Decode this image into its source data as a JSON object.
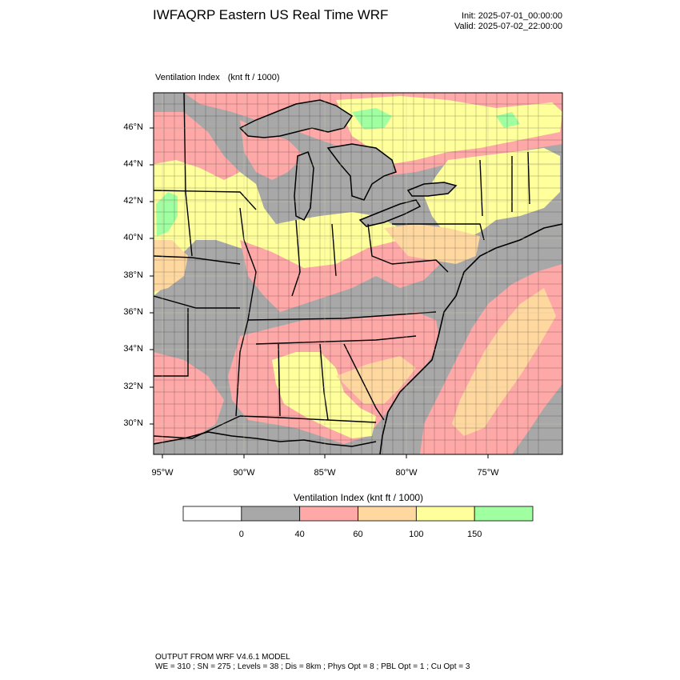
{
  "header": {
    "title": "IWFAQRP Eastern US Real Time WRF",
    "init": "Init: 2025-07-01_00:00:00",
    "valid": "Valid: 2025-07-02_22:00:00"
  },
  "plot": {
    "field_name": "Ventilation Index",
    "units": "(knt ft / 1000)"
  },
  "map": {
    "lat_labels": [
      "46°N",
      "44°N",
      "42°N",
      "40°N",
      "38°N",
      "36°N",
      "34°N",
      "32°N",
      "30°N"
    ],
    "lon_labels": [
      "95°W",
      "90°W",
      "85°W",
      "80°W",
      "75°W"
    ],
    "colors": {
      "land_low": "#a8a8a8",
      "water": "#a8a8a8",
      "cat_40_60": "#ffa8a8",
      "cat_60_100": "#ffd8a0",
      "cat_100_150": "#ffff9c",
      "cat_150_plus": "#a0ffa0"
    }
  },
  "colorbar": {
    "title": "Ventilation Index  (knt ft / 1000)",
    "labels": [
      "0",
      "40",
      "60",
      "100",
      "150"
    ],
    "bins": [
      {
        "color": "#ffffff"
      },
      {
        "color": "#a8a8a8"
      },
      {
        "color": "#ffa8a8"
      },
      {
        "color": "#ffd8a0"
      },
      {
        "color": "#ffff9c"
      },
      {
        "color": "#a0ffa0"
      }
    ]
  },
  "footer": {
    "line1": "OUTPUT FROM WRF V4.6.1 MODEL",
    "line2": "WE = 310 ; SN = 275 ; Levels = 38 ; Dis = 8km ; Phys Opt = 8 ; PBL Opt = 1 ; Cu Opt = 3"
  }
}
